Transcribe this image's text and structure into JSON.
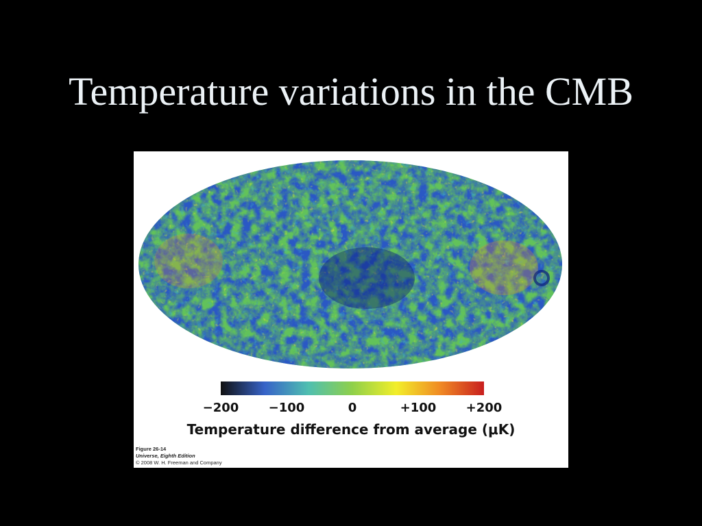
{
  "slide": {
    "title": "Temperature variations in the CMB"
  },
  "figure": {
    "map_palette": {
      "deep_blue": "#0b1f7a",
      "blue": "#2a58c4",
      "cyan": "#3fb2c6",
      "green": "#62c25a",
      "yellow": "#e8e43a",
      "orange": "#f08a2c",
      "red": "#c8201c"
    },
    "colorbar": {
      "stops": [
        "#111111",
        "#3763c8",
        "#4fbfb0",
        "#8fd04a",
        "#f2ee2a",
        "#f08a24",
        "#c81e1e"
      ],
      "ticks": [
        {
          "label": "−200",
          "value": -200
        },
        {
          "label": "−100",
          "value": -100
        },
        {
          "label": "0",
          "value": 0
        },
        {
          "label": "+100",
          "value": 100
        },
        {
          "label": "+200",
          "value": 200
        }
      ],
      "range": [
        -200,
        200
      ],
      "axis_label": "Temperature difference from average (μK)"
    },
    "credit": {
      "figure_number": "Figure 26-14",
      "book": "Universe, Eighth Edition",
      "copyright": "© 2008 W. H. Freeman and Company"
    }
  }
}
